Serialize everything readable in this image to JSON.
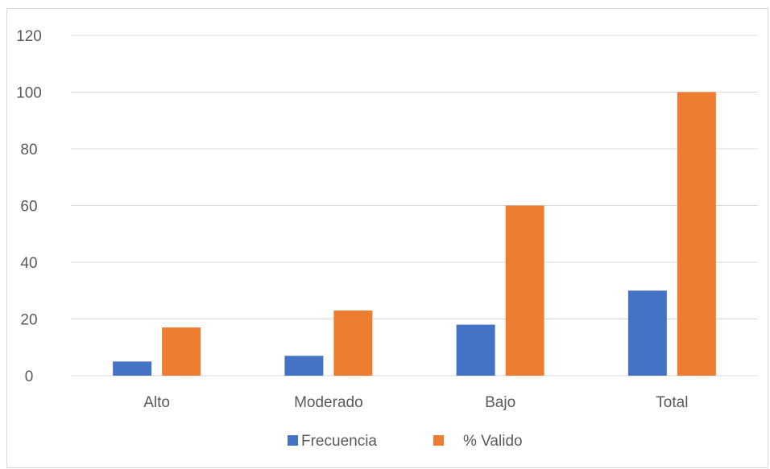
{
  "chart_data": {
    "type": "bar",
    "categories": [
      "Alto",
      "Moderado",
      "Bajo",
      "Total"
    ],
    "series": [
      {
        "name": "Frecuencia",
        "values": [
          5,
          7,
          18,
          30
        ],
        "color": "#4472c4"
      },
      {
        "name": "% Valido",
        "values": [
          17,
          23,
          60,
          100
        ],
        "color": "#ed7d31"
      }
    ],
    "title": "",
    "xlabel": "",
    "ylabel": "",
    "ylim": [
      0,
      120
    ],
    "yticks": [
      0,
      20,
      40,
      60,
      80,
      100,
      120
    ],
    "grid": true,
    "legend_position": "bottom",
    "gridline_color": "#d9d9d9"
  }
}
